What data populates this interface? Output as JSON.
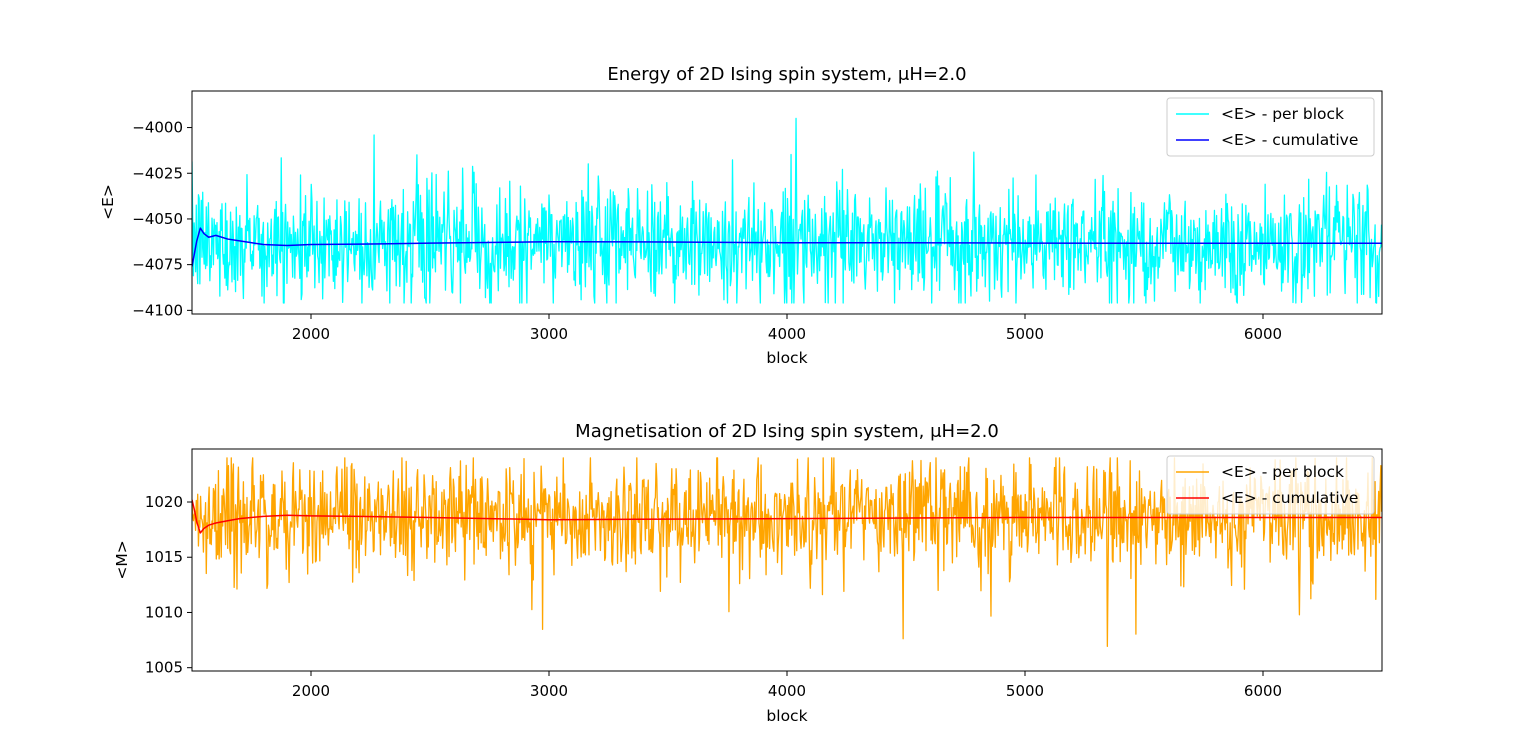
{
  "chart_data": [
    {
      "type": "line",
      "title": "Energy of 2D Ising spin system, μH=2.0",
      "xlabel": "block",
      "ylabel": "<E>",
      "xlim": [
        1500,
        6500
      ],
      "ylim": [
        -4102,
        -3980
      ],
      "xticks": [
        2000,
        3000,
        4000,
        5000,
        6000
      ],
      "yticks": [
        -4100,
        -4075,
        -4050,
        -4025,
        -4000
      ],
      "legend_position": "top-right",
      "grid": false,
      "series": [
        {
          "name": "<E> - per block",
          "color": "#00ffff",
          "kind": "fluctuating",
          "x_range": [
            1500,
            6500
          ],
          "points": 5000,
          "mean": -4063,
          "min": -4096,
          "max": -3995,
          "typical_spread": 16
        },
        {
          "name": "<E> - cumulative",
          "color": "#0000ff",
          "kind": "cumulative",
          "x": [
            1500,
            1510,
            1520,
            1535,
            1550,
            1570,
            1600,
            1650,
            1700,
            1800,
            1900,
            2000,
            2200,
            2500,
            3000,
            3500,
            4000,
            4500,
            5000,
            5500,
            6000,
            6500
          ],
          "y": [
            -4076,
            -4069,
            -4062,
            -4055,
            -4058,
            -4060,
            -4059,
            -4061,
            -4062,
            -4064,
            -4064.5,
            -4064,
            -4063.8,
            -4063.2,
            -4062.5,
            -4062.6,
            -4063,
            -4063,
            -4063.2,
            -4063.3,
            -4063.3,
            -4063.3
          ]
        }
      ]
    },
    {
      "type": "line",
      "title": "Magnetisation of 2D Ising spin system, μH=2.0",
      "xlabel": "block",
      "ylabel": "<M>",
      "xlim": [
        1500,
        6500
      ],
      "ylim": [
        1004.7,
        1024.8
      ],
      "xticks": [
        2000,
        3000,
        4000,
        5000,
        6000
      ],
      "yticks": [
        1005,
        1010,
        1015,
        1020
      ],
      "legend_position": "top-right",
      "grid": false,
      "series": [
        {
          "name": "<E> - per block",
          "color": "#ffa500",
          "kind": "fluctuating",
          "x_range": [
            1500,
            6500
          ],
          "points": 5000,
          "mean": 1018.6,
          "min": 1005.7,
          "max": 1024,
          "typical_spread": 2.5
        },
        {
          "name": "<E> - cumulative",
          "color": "#ff0000",
          "kind": "cumulative",
          "x": [
            1500,
            1510,
            1520,
            1535,
            1550,
            1570,
            1600,
            1650,
            1700,
            1800,
            1900,
            2000,
            2200,
            2500,
            3000,
            3500,
            4000,
            4500,
            5000,
            5500,
            6000,
            6500
          ],
          "y": [
            1020.2,
            1019.3,
            1018.2,
            1017.2,
            1017.6,
            1017.9,
            1018.1,
            1018.3,
            1018.5,
            1018.7,
            1018.8,
            1018.75,
            1018.7,
            1018.6,
            1018.4,
            1018.45,
            1018.5,
            1018.55,
            1018.6,
            1018.6,
            1018.6,
            1018.6
          ]
        }
      ]
    }
  ]
}
